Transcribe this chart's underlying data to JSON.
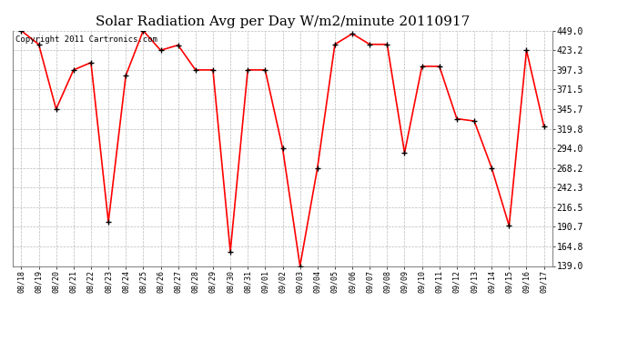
{
  "title": "Solar Radiation Avg per Day W/m2/minute 20110917",
  "copyright_text": "Copyright 2011 Cartronics.com",
  "x_labels": [
    "08/18",
    "08/19",
    "08/20",
    "08/21",
    "08/22",
    "08/23",
    "08/24",
    "08/25",
    "08/26",
    "08/27",
    "08/28",
    "08/29",
    "08/30",
    "08/31",
    "09/01",
    "09/02",
    "09/03",
    "09/04",
    "09/05",
    "09/06",
    "09/07",
    "09/08",
    "09/09",
    "09/10",
    "09/11",
    "09/12",
    "09/13",
    "09/14",
    "09/15",
    "09/16",
    "09/17"
  ],
  "y_values": [
    449.0,
    431.0,
    345.7,
    397.3,
    407.0,
    197.0,
    390.0,
    449.0,
    423.2,
    430.0,
    397.3,
    397.3,
    158.0,
    397.3,
    397.3,
    294.0,
    139.0,
    268.2,
    431.0,
    445.0,
    431.0,
    431.0,
    288.0,
    402.0,
    402.0,
    333.0,
    330.0,
    268.2,
    192.0,
    423.2,
    323.0
  ],
  "y_ticks": [
    139.0,
    164.8,
    190.7,
    216.5,
    242.3,
    268.2,
    294.0,
    319.8,
    345.7,
    371.5,
    397.3,
    423.2,
    449.0
  ],
  "ymin": 139.0,
  "ymax": 449.0,
  "line_color": "#ff0000",
  "marker_color": "#000000",
  "background_color": "#ffffff",
  "grid_color": "#bbbbbb",
  "title_fontsize": 11,
  "copyright_fontsize": 6.5,
  "tick_fontsize": 7,
  "xtick_fontsize": 6
}
